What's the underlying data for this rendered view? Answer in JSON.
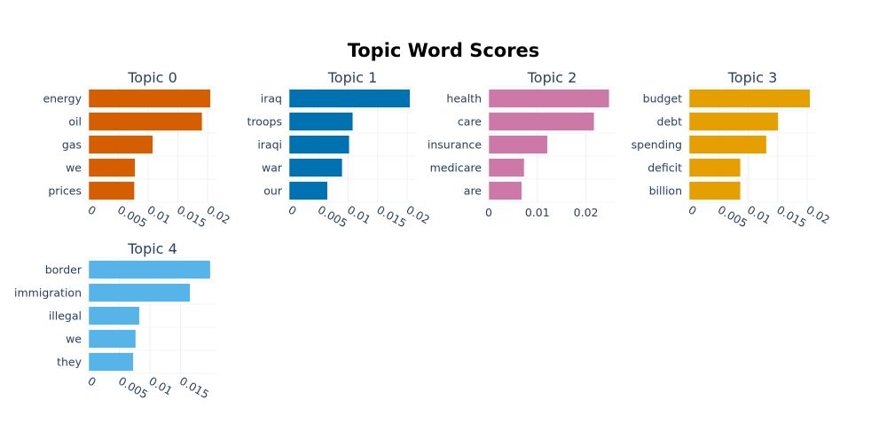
{
  "page_title": "Topic Word Scores",
  "chart_data": [
    {
      "type": "bar",
      "orientation": "horizontal",
      "title": "Topic 0",
      "color": "#D55E00",
      "categories": [
        "energy",
        "oil",
        "gas",
        "we",
        "prices"
      ],
      "values": [
        0.0205,
        0.0191,
        0.0108,
        0.0078,
        0.0077
      ],
      "xlim": [
        0,
        0.0215
      ],
      "xticks": [
        0,
        0.005,
        0.01,
        0.015,
        0.02
      ],
      "xtick_labels": [
        "0",
        "0.005",
        "0.01",
        "0.015",
        "0.02"
      ],
      "tick_rotation": 30,
      "grid": true
    },
    {
      "type": "bar",
      "orientation": "horizontal",
      "title": "Topic 1",
      "color": "#0072B2",
      "categories": [
        "iraq",
        "troops",
        "iraqi",
        "war",
        "our"
      ],
      "values": [
        0.0205,
        0.0108,
        0.0102,
        0.009,
        0.0065
      ],
      "xlim": [
        0,
        0.0215
      ],
      "xticks": [
        0,
        0.005,
        0.01,
        0.015,
        0.02
      ],
      "xtick_labels": [
        "0",
        "0.005",
        "0.01",
        "0.015",
        "0.02"
      ],
      "tick_rotation": 30,
      "grid": true
    },
    {
      "type": "bar",
      "orientation": "horizontal",
      "title": "Topic 2",
      "color": "#CC79A7",
      "categories": [
        "health",
        "care",
        "insurance",
        "medicare",
        "are"
      ],
      "values": [
        0.0248,
        0.0217,
        0.0121,
        0.0073,
        0.0068
      ],
      "xlim": [
        0,
        0.0261
      ],
      "xticks": [
        0,
        0.01,
        0.02
      ],
      "xtick_labels": [
        "0",
        "0.01",
        "0.02"
      ],
      "tick_rotation": 0,
      "grid": true
    },
    {
      "type": "bar",
      "orientation": "horizontal",
      "title": "Topic 3",
      "color": "#E69F00",
      "categories": [
        "budget",
        "debt",
        "spending",
        "deficit",
        "billion"
      ],
      "values": [
        0.0205,
        0.0151,
        0.0131,
        0.0087,
        0.0087
      ],
      "xlim": [
        0,
        0.0215
      ],
      "xticks": [
        0,
        0.005,
        0.01,
        0.015,
        0.02
      ],
      "xtick_labels": [
        "0",
        "0.005",
        "0.01",
        "0.015",
        "0.02"
      ],
      "tick_rotation": 30,
      "grid": true
    },
    {
      "type": "bar",
      "orientation": "horizontal",
      "title": "Topic 4",
      "color": "#56B4E9",
      "categories": [
        "border",
        "immigration",
        "illegal",
        "we",
        "they"
      ],
      "values": [
        0.0199,
        0.0166,
        0.0083,
        0.0077,
        0.0073
      ],
      "xlim": [
        0,
        0.0209
      ],
      "xticks": [
        0,
        0.005,
        0.01,
        0.015
      ],
      "xtick_labels": [
        "0",
        "0.005",
        "0.01",
        "0.015"
      ],
      "tick_rotation": 30,
      "grid": true
    }
  ]
}
